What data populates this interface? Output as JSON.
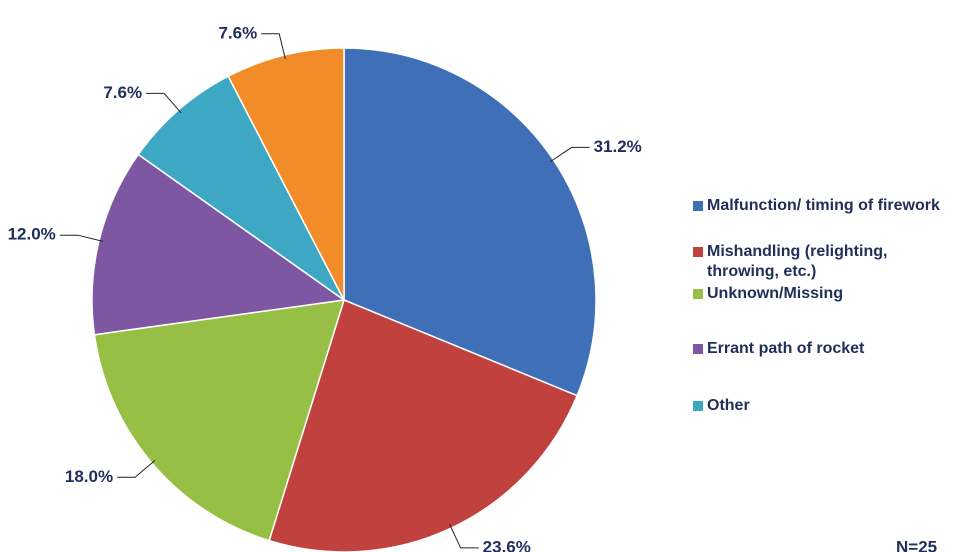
{
  "chart_data": {
    "type": "pie",
    "categories": [
      "Malfunction/ timing of firework",
      "Mishandling (relighting, throwing, etc.)",
      "Unknown/Missing",
      "Errant path of rocket",
      "Other",
      null
    ],
    "values": [
      31.2,
      23.6,
      18.0,
      12.0,
      7.6,
      7.6
    ],
    "value_labels": [
      "31.2%",
      "23.6%",
      "18.0%",
      "12.0%",
      "7.6%",
      "7.6%"
    ],
    "colors": [
      "#3f6fb6",
      "#c0413d",
      "#97bf45",
      "#7e57a2",
      "#3ea8c4",
      "#f28c28"
    ],
    "note": "N=25"
  }
}
